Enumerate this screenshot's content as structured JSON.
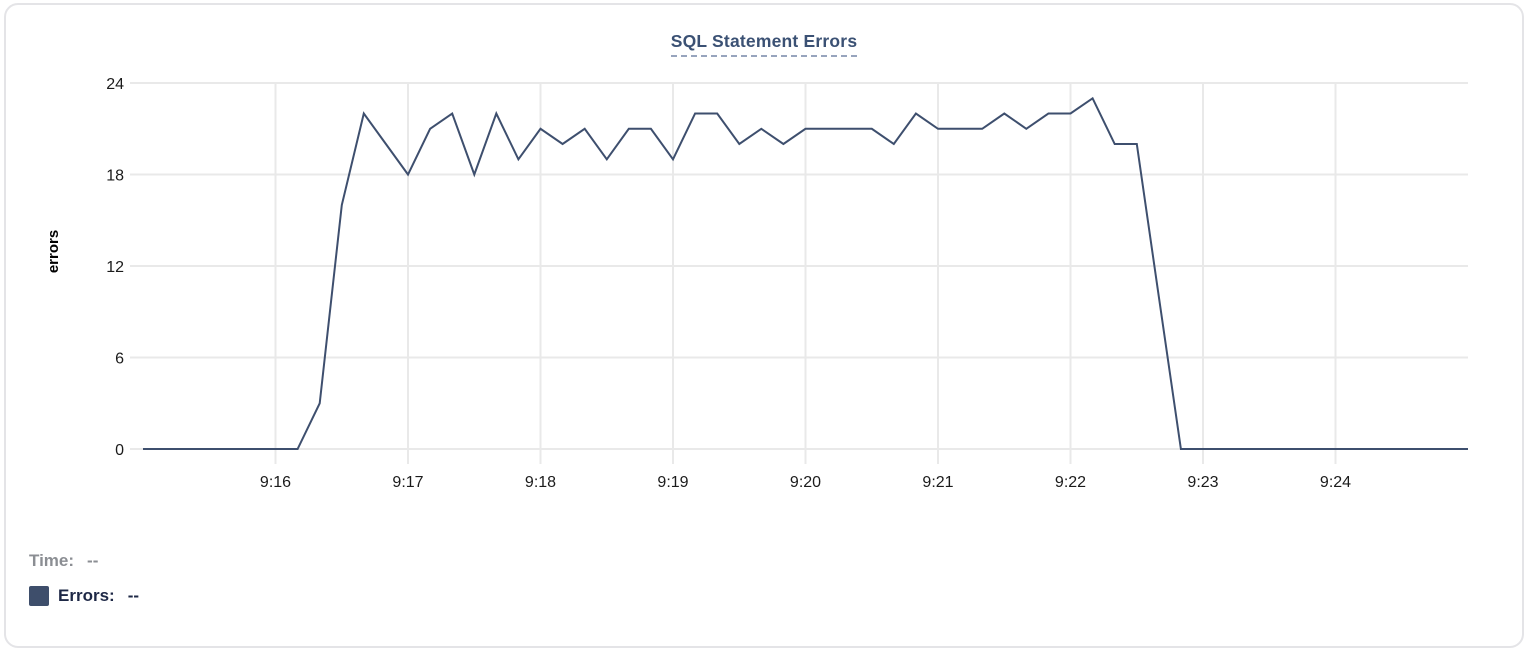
{
  "card": {
    "title": "SQL Statement Errors"
  },
  "readouts": {
    "time_label": "Time:",
    "time_value": "--",
    "errors_label": "Errors:",
    "errors_value": "--"
  },
  "colors": {
    "series_line": "#3e4f6e",
    "legend_swatch": "#3e4e6b",
    "title_text": "#3b5174",
    "title_underline": "#97a4bd",
    "gridline": "#e9e9e9",
    "axis_text": "#1b1b1b",
    "time_readout_text": "#8b8e93",
    "errors_readout_text": "#1e2846",
    "card_border": "#e4e4e7"
  },
  "chart_data": {
    "type": "line",
    "title": "SQL Statement Errors",
    "xlabel": "",
    "ylabel": "errors",
    "ylim": [
      0,
      24
    ],
    "y_ticks": [
      0,
      6,
      12,
      18,
      24
    ],
    "x_tick_labels": [
      "9:16",
      "9:17",
      "9:18",
      "9:19",
      "9:20",
      "9:21",
      "9:22",
      "9:23",
      "9:24"
    ],
    "x_start": "9:15:00",
    "x_end": "9:25:00",
    "x_step_seconds": 10,
    "grid": true,
    "legend_position": "bottom",
    "series": [
      {
        "name": "Errors",
        "color": "#3e4f6e",
        "values": [
          0,
          0,
          0,
          0,
          0,
          0,
          0,
          0,
          3,
          16,
          22,
          20,
          18,
          21,
          22,
          18,
          22,
          19,
          21,
          20,
          21,
          19,
          21,
          21,
          19,
          22,
          22,
          20,
          21,
          20,
          21,
          21,
          21,
          21,
          20,
          22,
          21,
          21,
          21,
          22,
          21,
          22,
          22,
          23,
          20,
          20,
          10,
          0,
          0,
          0,
          0,
          0,
          0,
          0,
          0,
          0,
          0,
          0,
          0,
          0,
          0
        ]
      }
    ]
  }
}
